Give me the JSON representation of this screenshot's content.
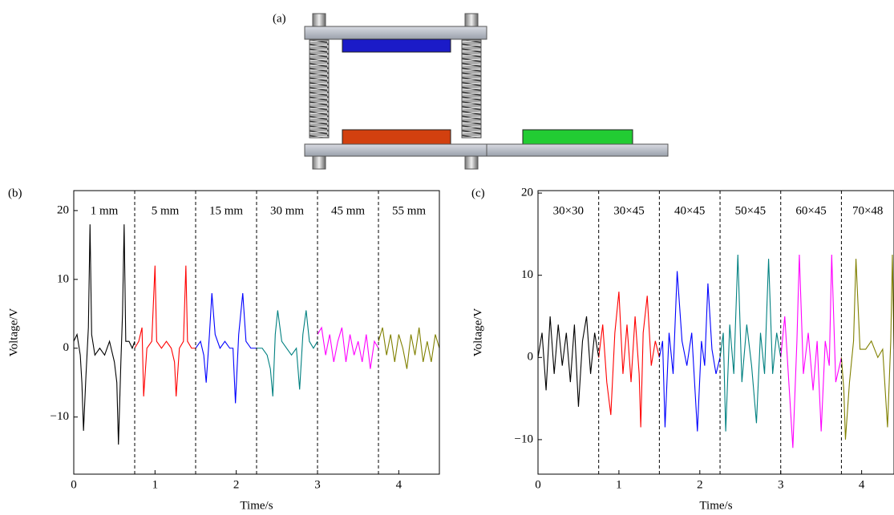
{
  "diagram": {
    "label": "(a)"
  },
  "chart_data": [
    {
      "type": "line",
      "panel": "(b)",
      "xlabel": "Time/s",
      "ylabel": "Voltage/V",
      "xlim": [
        0,
        4.5
      ],
      "ylim": [
        -18.3,
        22.9
      ],
      "xticks": [
        0,
        1,
        2,
        3,
        4
      ],
      "yticks": [
        {
          "value": -10,
          "label": "−10"
        },
        0,
        10,
        20
      ],
      "dividers": [
        0.75,
        1.5,
        2.25,
        3,
        3.75
      ],
      "region_labels": [
        "1 mm",
        "5 mm",
        "15 mm",
        "30 mm",
        "45 mm",
        "55 mm"
      ],
      "series": [
        {
          "color": "#000000",
          "x": [
            0,
            0.04,
            0.08,
            0.1,
            0.12,
            0.15,
            0.18,
            0.2,
            0.22,
            0.26,
            0.32,
            0.38,
            0.44,
            0.5,
            0.53,
            0.55,
            0.58,
            0.6,
            0.62,
            0.64,
            0.68,
            0.72,
            0.75
          ],
          "values": [
            1,
            2,
            -1,
            -5,
            -12,
            -4,
            3,
            18,
            2,
            -1,
            0,
            -1,
            1,
            -2,
            -5,
            -14,
            -2,
            5,
            18,
            1,
            1,
            0,
            1
          ]
        },
        {
          "color": "#ff0000",
          "x": [
            0.75,
            0.8,
            0.84,
            0.86,
            0.9,
            0.96,
            1.0,
            1.02,
            1.08,
            1.14,
            1.2,
            1.24,
            1.26,
            1.3,
            1.35,
            1.38,
            1.4,
            1.45,
            1.5
          ],
          "values": [
            0,
            1,
            3,
            -7,
            0,
            1,
            12,
            1,
            0,
            1,
            0,
            -2,
            -7,
            0,
            1,
            12,
            1,
            0,
            0
          ]
        },
        {
          "color": "#0000ff",
          "x": [
            1.5,
            1.56,
            1.6,
            1.63,
            1.67,
            1.7,
            1.74,
            1.8,
            1.86,
            1.92,
            1.96,
            1.99,
            2.03,
            2.08,
            2.12,
            2.18,
            2.25
          ],
          "values": [
            0,
            1,
            -1,
            -5,
            2,
            8,
            2,
            0,
            1,
            0,
            0,
            -8,
            2,
            8,
            1,
            0,
            0
          ]
        },
        {
          "color": "#008080",
          "x": [
            2.25,
            2.32,
            2.38,
            2.42,
            2.45,
            2.48,
            2.51,
            2.56,
            2.62,
            2.68,
            2.74,
            2.78,
            2.82,
            2.86,
            2.9,
            2.95,
            3.0
          ],
          "values": [
            0,
            0,
            -1,
            -3,
            -7,
            2,
            5.5,
            1,
            0,
            -1,
            0,
            -6,
            2,
            5.5,
            1,
            0,
            1
          ]
        },
        {
          "color": "#ff00ff",
          "x": [
            3.0,
            3.05,
            3.1,
            3.15,
            3.2,
            3.25,
            3.3,
            3.35,
            3.4,
            3.45,
            3.5,
            3.55,
            3.6,
            3.65,
            3.7,
            3.75
          ],
          "values": [
            2,
            3,
            -1,
            2,
            -2,
            1,
            3,
            -2,
            2,
            -1,
            1,
            -2,
            2,
            -3,
            1,
            0
          ]
        },
        {
          "color": "#808000",
          "x": [
            3.75,
            3.8,
            3.85,
            3.9,
            3.95,
            4.0,
            4.05,
            4.1,
            4.15,
            4.2,
            4.25,
            4.3,
            4.35,
            4.4,
            4.45,
            4.5
          ],
          "values": [
            1,
            3,
            -1,
            2,
            -2,
            2,
            0,
            -3,
            2,
            -1,
            3,
            -2,
            1,
            -2,
            2,
            0
          ]
        }
      ]
    },
    {
      "type": "line",
      "panel": "(c)",
      "xlabel": "Time/s",
      "ylabel": "Voltage/V",
      "xlim": [
        0,
        4.4
      ],
      "ylim": [
        -14.2,
        20.3
      ],
      "xticks": [
        0,
        1,
        2,
        3,
        4
      ],
      "yticks": [
        {
          "value": -10,
          "label": "−10"
        },
        0,
        10,
        20
      ],
      "dividers": [
        0.75,
        1.5,
        2.25,
        3,
        3.75
      ],
      "region_labels": [
        "30×30",
        "30×45",
        "40×45",
        "50×45",
        "60×45",
        "70×48"
      ],
      "series": [
        {
          "color": "#000000",
          "x": [
            0,
            0.05,
            0.1,
            0.15,
            0.2,
            0.25,
            0.3,
            0.35,
            0.4,
            0.45,
            0.5,
            0.55,
            0.6,
            0.65,
            0.7,
            0.75
          ],
          "values": [
            0,
            3,
            -4,
            5,
            -2,
            4,
            -1,
            3,
            -3,
            4,
            -6,
            2,
            5,
            -2,
            3,
            0
          ]
        },
        {
          "color": "#ff0000",
          "x": [
            0.75,
            0.8,
            0.85,
            0.9,
            0.95,
            1.0,
            1.05,
            1.1,
            1.15,
            1.2,
            1.25,
            1.27,
            1.3,
            1.35,
            1.4,
            1.45,
            1.5
          ],
          "values": [
            0,
            4,
            -3,
            -7,
            3,
            8,
            -2,
            4,
            -3,
            5,
            -2,
            -8.5,
            3,
            7.5,
            -1,
            2,
            0
          ]
        },
        {
          "color": "#0000ff",
          "x": [
            1.5,
            1.54,
            1.57,
            1.62,
            1.67,
            1.72,
            1.78,
            1.84,
            1.9,
            1.97,
            2.02,
            2.06,
            2.1,
            2.15,
            2.2,
            2.25
          ],
          "values": [
            0,
            2,
            -8.5,
            3,
            -2,
            10.5,
            2,
            -1,
            3,
            -9,
            2,
            -1,
            9,
            1,
            -2,
            0
          ]
        },
        {
          "color": "#008080",
          "x": [
            2.25,
            2.29,
            2.32,
            2.37,
            2.42,
            2.47,
            2.52,
            2.58,
            2.64,
            2.7,
            2.75,
            2.8,
            2.85,
            2.9,
            2.95,
            3.0
          ],
          "values": [
            0,
            3,
            -9,
            4,
            -2,
            12.5,
            -3,
            4,
            -1,
            -8,
            3,
            -2,
            12,
            -2,
            3,
            0
          ]
        },
        {
          "color": "#ff00ff",
          "x": [
            3.0,
            3.05,
            3.1,
            3.15,
            3.2,
            3.23,
            3.28,
            3.34,
            3.4,
            3.45,
            3.5,
            3.55,
            3.6,
            3.63,
            3.68,
            3.75
          ],
          "values": [
            0,
            5,
            -3,
            -11,
            2,
            12.5,
            -2,
            3,
            -4,
            2,
            -9,
            2,
            -1,
            12.5,
            -3,
            0
          ]
        },
        {
          "color": "#808000",
          "x": [
            3.75,
            3.78,
            3.8,
            3.85,
            3.9,
            3.93,
            3.98,
            4.05,
            4.12,
            4.2,
            4.26,
            4.32,
            4.36,
            4.38,
            4.4
          ],
          "values": [
            0,
            -4,
            -10,
            -3,
            2,
            12,
            1,
            1,
            2,
            0,
            1,
            -8.5,
            2,
            12.5,
            1
          ]
        }
      ]
    }
  ]
}
